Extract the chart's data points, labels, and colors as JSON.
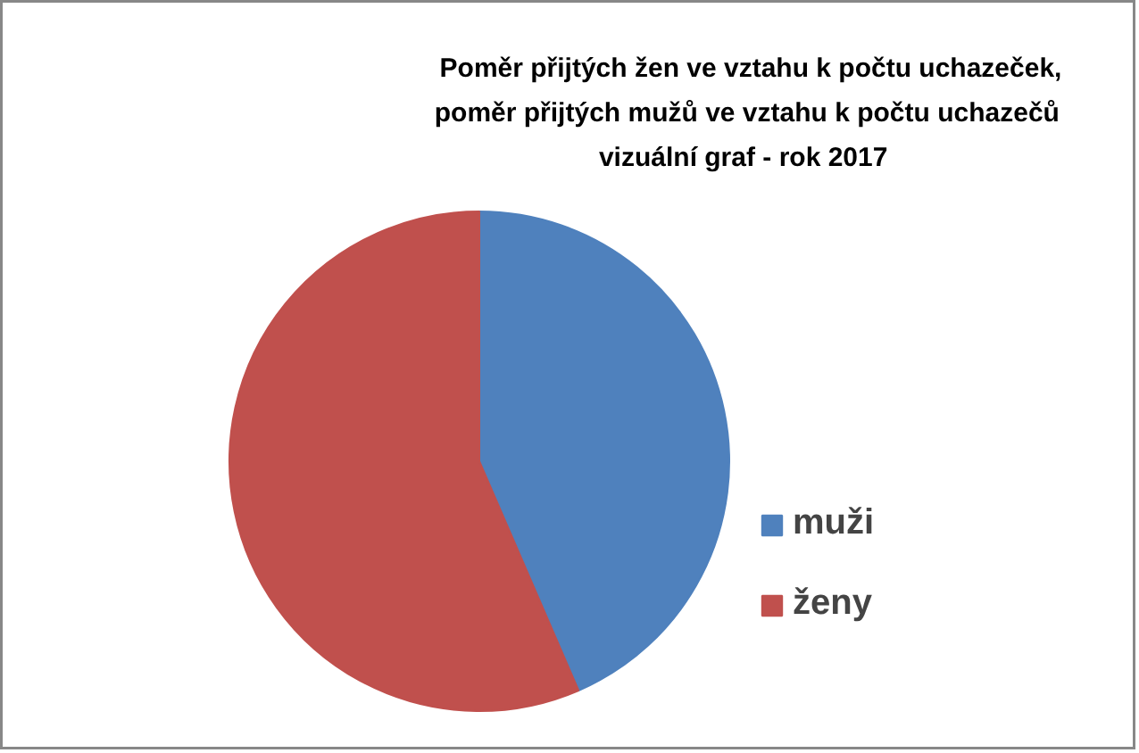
{
  "chart_data": {
    "type": "pie",
    "title": "Poměr přijtých žen ve vztahu k počtu uchazeček,\n poměr přijtých mužů ve vztahu k počtu uchazečů\nvizuální graf -  rok  2017",
    "categories": [
      "muži",
      "ženy"
    ],
    "values": [
      43.5,
      56.5
    ],
    "colors": [
      "#4f81bd",
      "#c0504d"
    ],
    "legend": "right"
  }
}
